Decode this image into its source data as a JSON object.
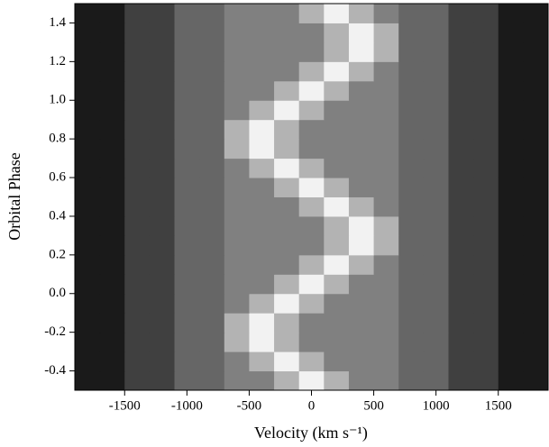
{
  "chart_data": {
    "type": "heatmap",
    "xlabel": "Velocity (km s⁻¹)",
    "ylabel": "Orbital Phase",
    "xbins": [
      -1900,
      -1700,
      -1500,
      -1300,
      -1100,
      -900,
      -700,
      -500,
      -300,
      -100,
      100,
      300,
      500,
      700,
      900,
      1100,
      1300,
      1500,
      1700,
      1900
    ],
    "ybins": [
      -0.5,
      -0.4,
      -0.3,
      -0.2,
      -0.1,
      0,
      0.1,
      0.2,
      0.3,
      0.4,
      0.5,
      0.6,
      0.7,
      0.8,
      0.9,
      1,
      1.1,
      1.2,
      1.3,
      1.4,
      1.5
    ],
    "values": [
      [
        0.1,
        0.1,
        0.25,
        0.25,
        0.4,
        0.4,
        0.5,
        0.5,
        0.7,
        0.95,
        0.7,
        0.5,
        0.5,
        0.4,
        0.4,
        0.25,
        0.25,
        0.1,
        0.1
      ],
      [
        0.1,
        0.1,
        0.25,
        0.25,
        0.4,
        0.4,
        0.5,
        0.7,
        0.95,
        0.7,
        0.5,
        0.5,
        0.5,
        0.4,
        0.4,
        0.25,
        0.25,
        0.1,
        0.1
      ],
      [
        0.1,
        0.1,
        0.25,
        0.25,
        0.4,
        0.4,
        0.7,
        0.95,
        0.7,
        0.5,
        0.5,
        0.5,
        0.5,
        0.4,
        0.4,
        0.25,
        0.25,
        0.1,
        0.1
      ],
      [
        0.1,
        0.1,
        0.25,
        0.25,
        0.4,
        0.4,
        0.7,
        0.95,
        0.7,
        0.5,
        0.5,
        0.5,
        0.5,
        0.4,
        0.4,
        0.25,
        0.25,
        0.1,
        0.1
      ],
      [
        0.1,
        0.1,
        0.25,
        0.25,
        0.4,
        0.4,
        0.5,
        0.7,
        0.95,
        0.7,
        0.5,
        0.5,
        0.5,
        0.4,
        0.4,
        0.25,
        0.25,
        0.1,
        0.1
      ],
      [
        0.1,
        0.1,
        0.25,
        0.25,
        0.4,
        0.4,
        0.5,
        0.5,
        0.7,
        0.95,
        0.7,
        0.5,
        0.5,
        0.4,
        0.4,
        0.25,
        0.25,
        0.1,
        0.1
      ],
      [
        0.1,
        0.1,
        0.25,
        0.25,
        0.4,
        0.4,
        0.5,
        0.5,
        0.5,
        0.7,
        0.95,
        0.7,
        0.5,
        0.4,
        0.4,
        0.25,
        0.25,
        0.1,
        0.1
      ],
      [
        0.1,
        0.1,
        0.25,
        0.25,
        0.4,
        0.4,
        0.5,
        0.5,
        0.5,
        0.5,
        0.7,
        0.95,
        0.7,
        0.4,
        0.4,
        0.25,
        0.25,
        0.1,
        0.1
      ],
      [
        0.1,
        0.1,
        0.25,
        0.25,
        0.4,
        0.4,
        0.5,
        0.5,
        0.5,
        0.5,
        0.7,
        0.95,
        0.7,
        0.4,
        0.4,
        0.25,
        0.25,
        0.1,
        0.1
      ],
      [
        0.1,
        0.1,
        0.25,
        0.25,
        0.4,
        0.4,
        0.5,
        0.5,
        0.5,
        0.7,
        0.95,
        0.7,
        0.5,
        0.4,
        0.4,
        0.25,
        0.25,
        0.1,
        0.1
      ],
      [
        0.1,
        0.1,
        0.25,
        0.25,
        0.4,
        0.4,
        0.5,
        0.5,
        0.7,
        0.95,
        0.7,
        0.5,
        0.5,
        0.4,
        0.4,
        0.25,
        0.25,
        0.1,
        0.1
      ],
      [
        0.1,
        0.1,
        0.25,
        0.25,
        0.4,
        0.4,
        0.5,
        0.7,
        0.95,
        0.7,
        0.5,
        0.5,
        0.5,
        0.4,
        0.4,
        0.25,
        0.25,
        0.1,
        0.1
      ],
      [
        0.1,
        0.1,
        0.25,
        0.25,
        0.4,
        0.4,
        0.7,
        0.95,
        0.7,
        0.5,
        0.5,
        0.5,
        0.5,
        0.4,
        0.4,
        0.25,
        0.25,
        0.1,
        0.1
      ],
      [
        0.1,
        0.1,
        0.25,
        0.25,
        0.4,
        0.4,
        0.7,
        0.95,
        0.7,
        0.5,
        0.5,
        0.5,
        0.5,
        0.4,
        0.4,
        0.25,
        0.25,
        0.1,
        0.1
      ],
      [
        0.1,
        0.1,
        0.25,
        0.25,
        0.4,
        0.4,
        0.5,
        0.7,
        0.95,
        0.7,
        0.5,
        0.5,
        0.5,
        0.4,
        0.4,
        0.25,
        0.25,
        0.1,
        0.1
      ],
      [
        0.1,
        0.1,
        0.25,
        0.25,
        0.4,
        0.4,
        0.5,
        0.5,
        0.7,
        0.95,
        0.7,
        0.5,
        0.5,
        0.4,
        0.4,
        0.25,
        0.25,
        0.1,
        0.1
      ],
      [
        0.1,
        0.1,
        0.25,
        0.25,
        0.4,
        0.4,
        0.5,
        0.5,
        0.5,
        0.7,
        0.95,
        0.7,
        0.5,
        0.4,
        0.4,
        0.25,
        0.25,
        0.1,
        0.1
      ],
      [
        0.1,
        0.1,
        0.25,
        0.25,
        0.4,
        0.4,
        0.5,
        0.5,
        0.5,
        0.5,
        0.7,
        0.95,
        0.7,
        0.4,
        0.4,
        0.25,
        0.25,
        0.1,
        0.1
      ],
      [
        0.1,
        0.1,
        0.25,
        0.25,
        0.4,
        0.4,
        0.5,
        0.5,
        0.5,
        0.5,
        0.7,
        0.95,
        0.7,
        0.4,
        0.4,
        0.25,
        0.25,
        0.1,
        0.1
      ],
      [
        0.1,
        0.1,
        0.25,
        0.25,
        0.4,
        0.4,
        0.5,
        0.5,
        0.5,
        0.7,
        0.95,
        0.7,
        0.5,
        0.4,
        0.4,
        0.25,
        0.25,
        0.1,
        0.1
      ]
    ],
    "xlim": [
      -1900,
      1900
    ],
    "ylim": [
      -0.5,
      1.5
    ],
    "xticks": [
      -1500,
      -1000,
      -500,
      0,
      500,
      1000,
      1500
    ],
    "yticks": [
      -0.4,
      -0.2,
      {
        "value": 0,
        "label": "0.0"
      },
      0.2,
      0.4,
      0.6,
      0.8,
      {
        "value": 1,
        "label": "1.0"
      },
      1.2,
      1.4
    ]
  }
}
